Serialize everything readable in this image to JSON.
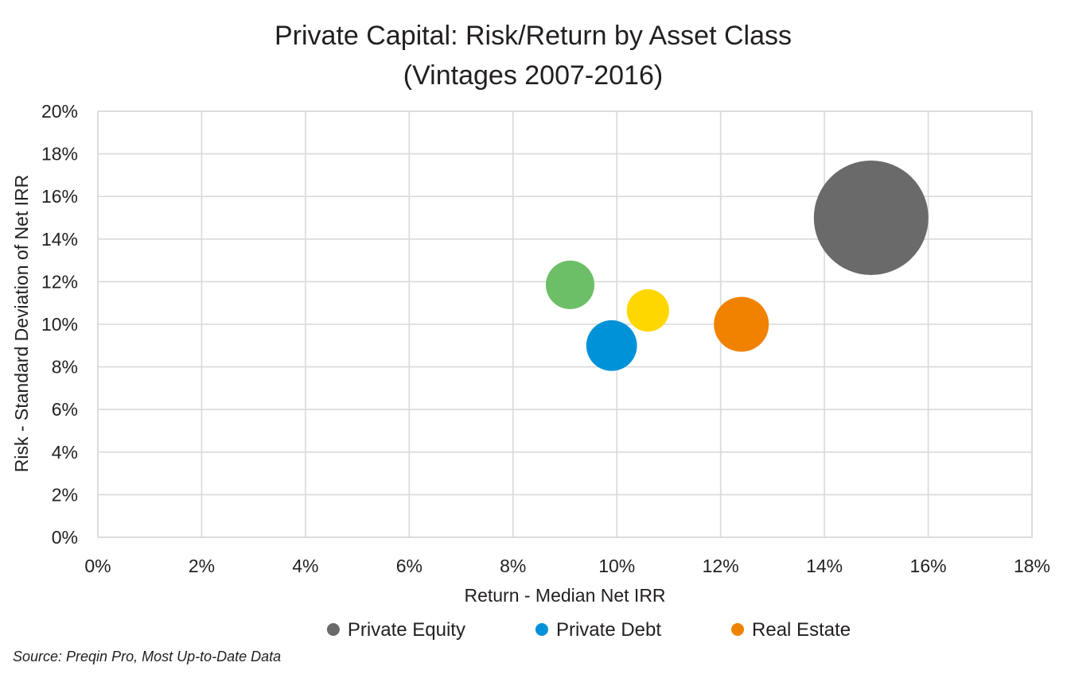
{
  "chart_data": {
    "type": "scatter",
    "subtype": "bubble",
    "title": [
      "Private Capital: Risk/Return by Asset Class",
      "(Vintages 2007-2016)"
    ],
    "xlabel": "Return - Median Net IRR",
    "ylabel": "Risk - Standard Deviation of Net IRR",
    "xlim": [
      0,
      18
    ],
    "ylim": [
      0,
      20
    ],
    "x_ticks": [
      "0%",
      "2%",
      "4%",
      "6%",
      "8%",
      "10%",
      "12%",
      "14%",
      "16%",
      "18%"
    ],
    "y_ticks": [
      "0%",
      "2%",
      "4%",
      "6%",
      "8%",
      "10%",
      "12%",
      "14%",
      "16%",
      "18%",
      "20%"
    ],
    "grid": true,
    "legend_position": "bottom",
    "series": [
      {
        "name": "Private Equity",
        "color": "#6b6a6a",
        "x": 14.9,
        "y": 15.0,
        "size": 1.0
      },
      {
        "name": "Private Debt",
        "color": "#0092d8",
        "x": 9.9,
        "y": 9.0,
        "size": 0.196
      },
      {
        "name": "Real Estate",
        "color": "#f08200",
        "x": 12.4,
        "y": 10.0,
        "size": 0.23
      },
      {
        "color": "#6dbf67",
        "x": 9.1,
        "y": 11.85,
        "size": 0.18
      },
      {
        "color": "#ffd700",
        "x": 10.6,
        "y": 10.65,
        "size": 0.137
      }
    ]
  },
  "source": "Source: Preqin Pro, Most Up-to-Date Data"
}
